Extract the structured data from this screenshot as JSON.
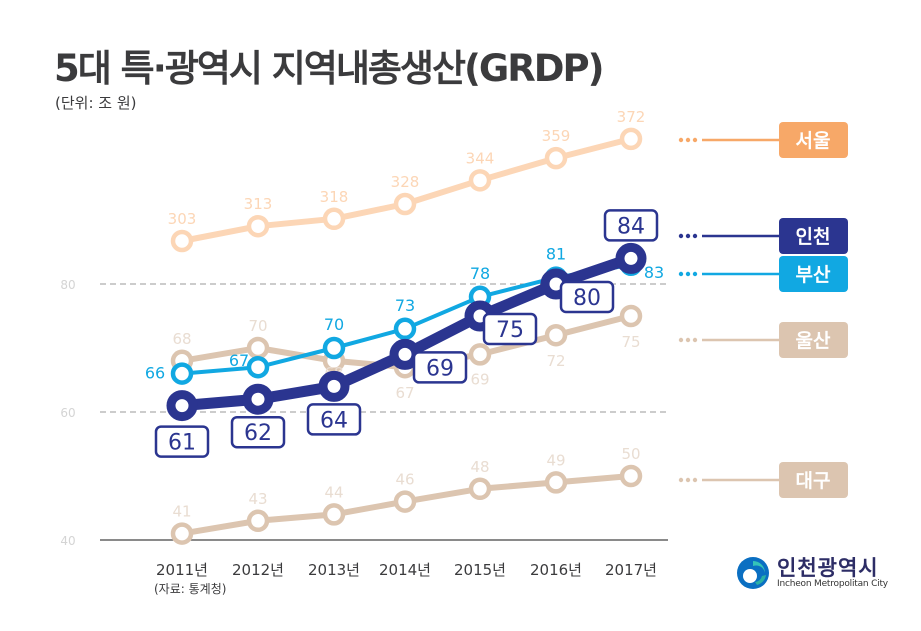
{
  "title": "5대 특·광역시 지역내총생산(GRDP)",
  "unit": "(단위: 조 원)",
  "source": "(자료: 통계청)",
  "logo": {
    "korean": "인천광역시",
    "english": "Incheon Metropolitan City"
  },
  "colors": {
    "seoul": "#f7a868",
    "seoul_line": "#fcd6b6",
    "incheon": "#2b3590",
    "busan": "#11a8e2",
    "ulsan": "#dcc5b0",
    "daegu": "#dcc5b0",
    "label_faint": "#e9ddd2"
  },
  "chart_data": {
    "type": "line",
    "title": "5대 특·광역시 지역내총생산(GRDP)",
    "ylabel": "조 원",
    "x": [
      "2011년",
      "2012년",
      "2013년",
      "2014년",
      "2015년",
      "2016년",
      "2017년"
    ],
    "y_ticks": [
      "40",
      "60",
      "80"
    ],
    "grid": "dashed at 60 and 80; solid baseline at 40",
    "note": "Seoul series plotted on a compressed/broken scale above the main axis",
    "series": [
      {
        "name": "서울",
        "key": "seoul",
        "values": [
          303,
          313,
          318,
          328,
          344,
          359,
          372
        ]
      },
      {
        "name": "인천",
        "key": "incheon",
        "values": [
          61,
          62,
          64,
          69,
          75,
          80,
          84
        ]
      },
      {
        "name": "부산",
        "key": "busan",
        "values": [
          66,
          67,
          70,
          73,
          78,
          81,
          83
        ]
      },
      {
        "name": "울산",
        "key": "ulsan",
        "values": [
          68,
          70,
          68,
          67,
          69,
          72,
          75
        ]
      },
      {
        "name": "대구",
        "key": "daegu",
        "values": [
          41,
          43,
          44,
          46,
          48,
          49,
          50
        ]
      }
    ],
    "legend": [
      "서울",
      "인천",
      "부산",
      "울산",
      "대구"
    ],
    "legend_position": "right"
  }
}
